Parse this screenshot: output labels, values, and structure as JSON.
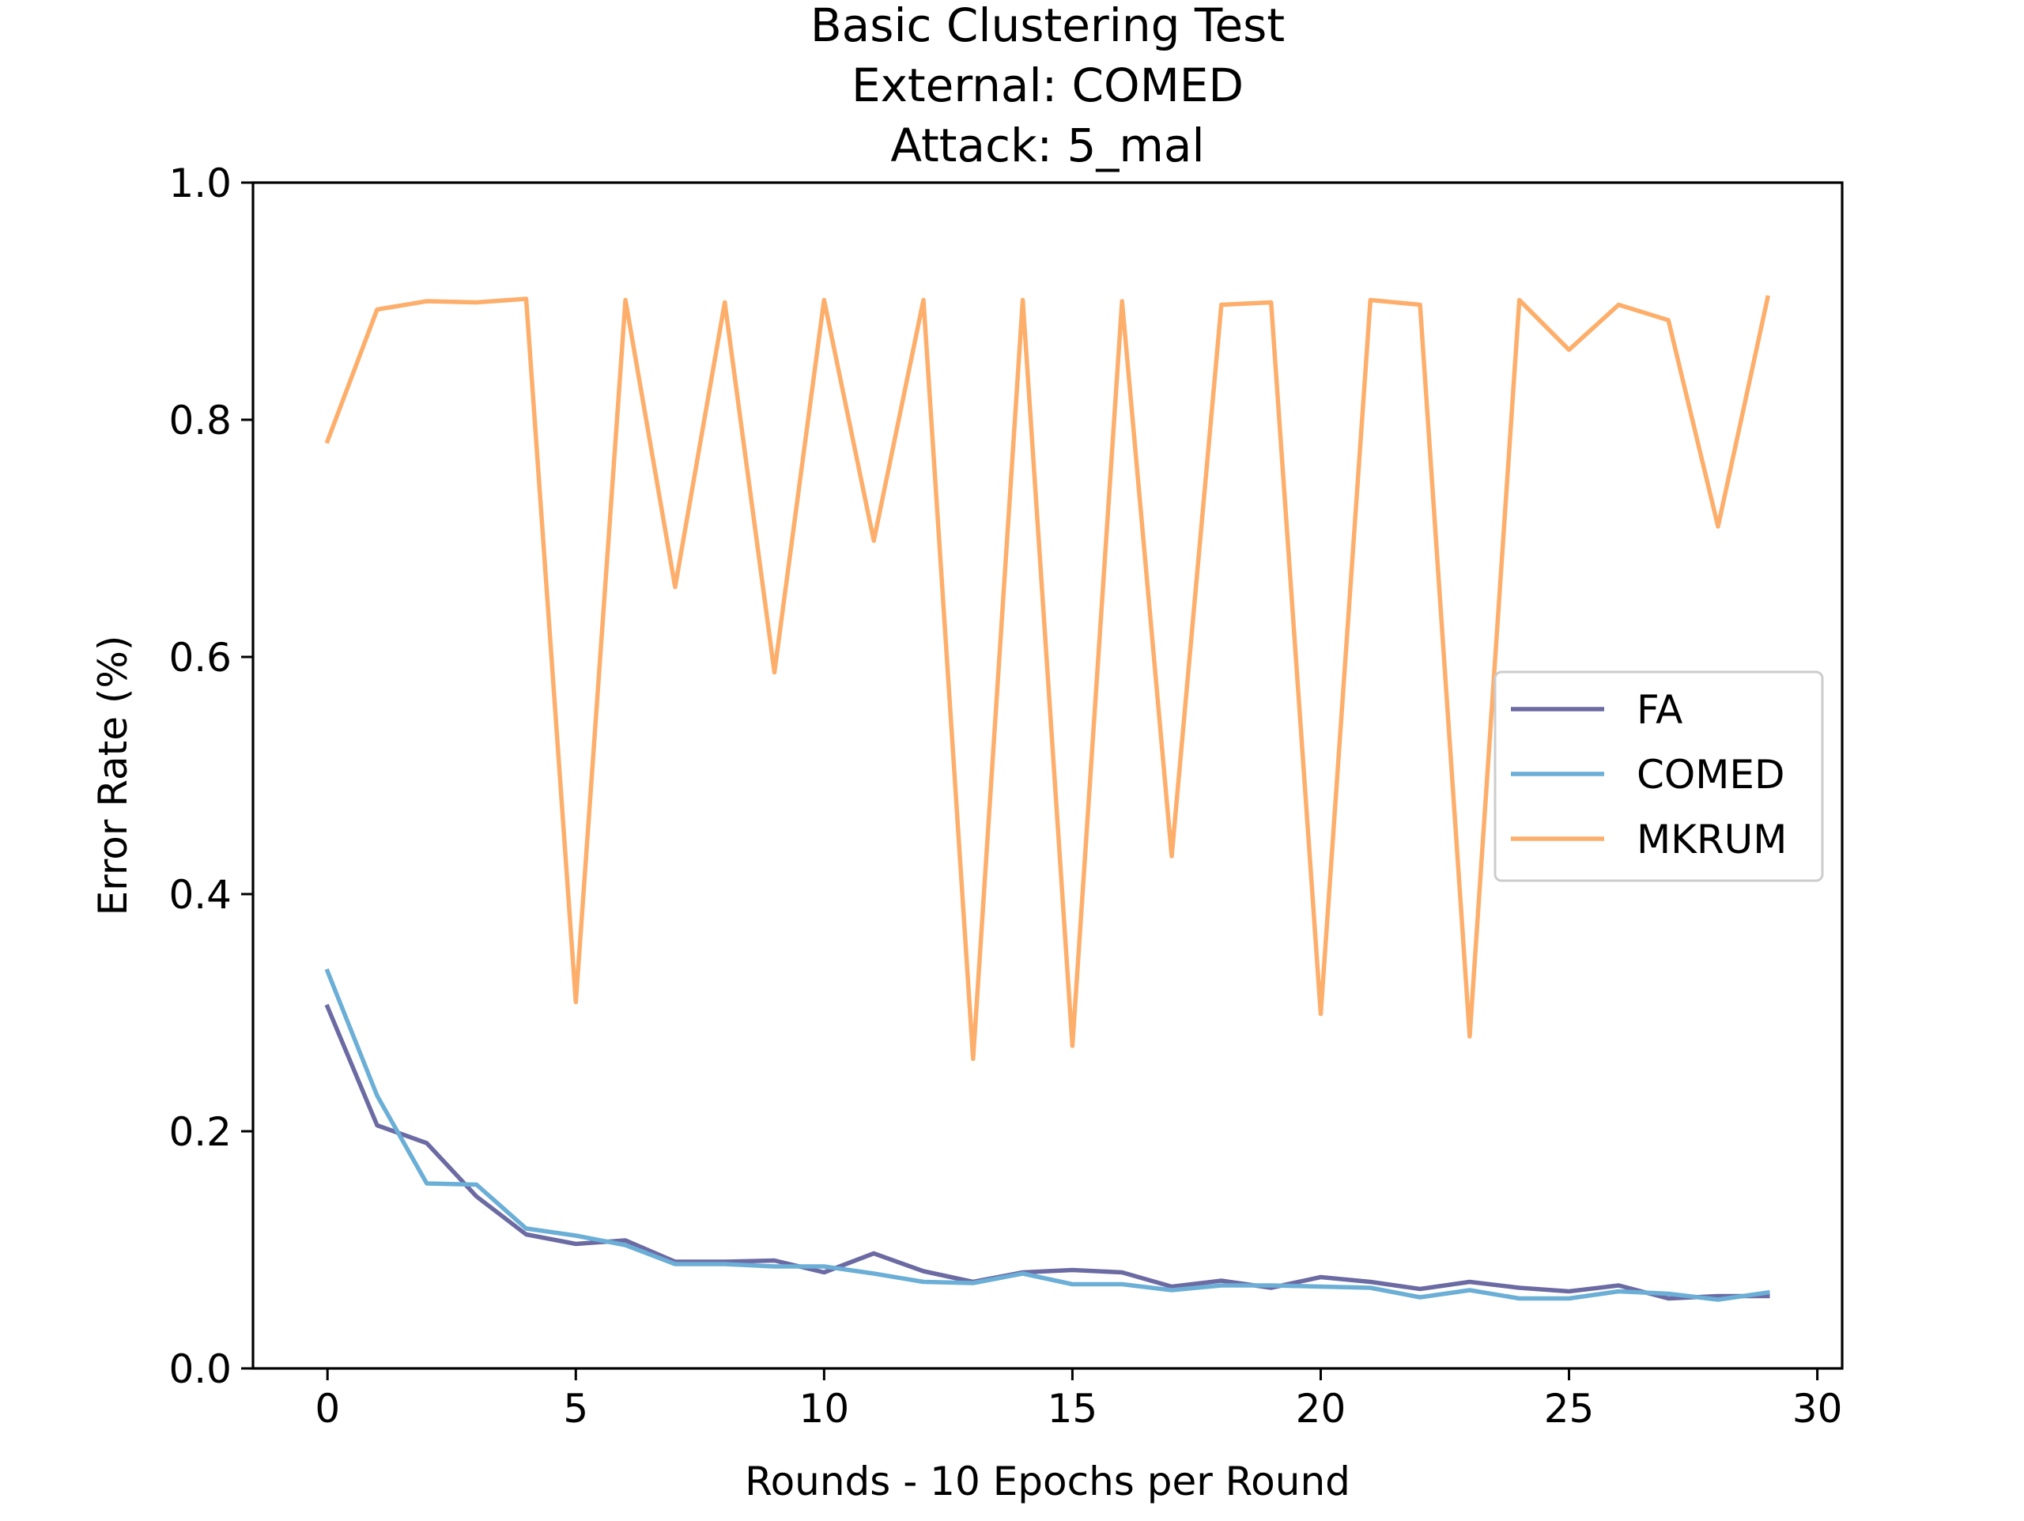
{
  "chart_data": {
    "type": "line",
    "title": [
      "Basic Clustering Test",
      "External: COMED",
      "Attack: 5_mal"
    ],
    "xlabel": "Rounds - 10 Epochs per Round",
    "ylabel": "Error Rate (%)",
    "xlim": [
      -1.5,
      30.5
    ],
    "ylim": [
      0,
      1
    ],
    "xticks": [
      0,
      5,
      10,
      15,
      20,
      25,
      30
    ],
    "xtick_labels": [
      "0",
      "5",
      "10",
      "15",
      "20",
      "25",
      "30"
    ],
    "yticks": [
      0,
      0.2,
      0.4,
      0.6,
      0.8,
      1.0
    ],
    "ytick_labels": [
      "0.0",
      "0.2",
      "0.4",
      "0.6",
      "0.8",
      "1.0"
    ],
    "grid": false,
    "legend_position": "center-right",
    "x": [
      0,
      1,
      2,
      3,
      4,
      5,
      6,
      7,
      8,
      9,
      10,
      11,
      12,
      13,
      14,
      15,
      16,
      17,
      18,
      19,
      20,
      21,
      22,
      23,
      24,
      25,
      26,
      27,
      28,
      29
    ],
    "series": [
      {
        "name": "FA",
        "color": "#6b6aa3",
        "values": [
          0.305,
          0.205,
          0.19,
          0.145,
          0.113,
          0.105,
          0.108,
          0.09,
          0.09,
          0.091,
          0.081,
          0.097,
          0.082,
          0.073,
          0.081,
          0.083,
          0.081,
          0.069,
          0.074,
          0.068,
          0.077,
          0.073,
          0.067,
          0.073,
          0.068,
          0.065,
          0.07,
          0.059,
          0.061,
          0.061
        ]
      },
      {
        "name": "COMED",
        "color": "#6baed6",
        "values": [
          0.335,
          0.23,
          0.156,
          0.155,
          0.118,
          0.112,
          0.104,
          0.088,
          0.088,
          0.086,
          0.086,
          0.08,
          0.073,
          0.072,
          0.08,
          0.071,
          0.071,
          0.066,
          0.07,
          0.07,
          0.069,
          0.068,
          0.06,
          0.066,
          0.059,
          0.059,
          0.065,
          0.063,
          0.058,
          0.064
        ]
      },
      {
        "name": "MKRUM",
        "color": "#fdae6b",
        "values": [
          0.782,
          0.893,
          0.9,
          0.899,
          0.902,
          0.309,
          0.901,
          0.659,
          0.899,
          0.587,
          0.901,
          0.698,
          0.901,
          0.261,
          0.901,
          0.272,
          0.9,
          0.432,
          0.897,
          0.899,
          0.299,
          0.901,
          0.897,
          0.28,
          0.901,
          0.859,
          0.897,
          0.884,
          0.71,
          0.903
        ]
      }
    ]
  }
}
